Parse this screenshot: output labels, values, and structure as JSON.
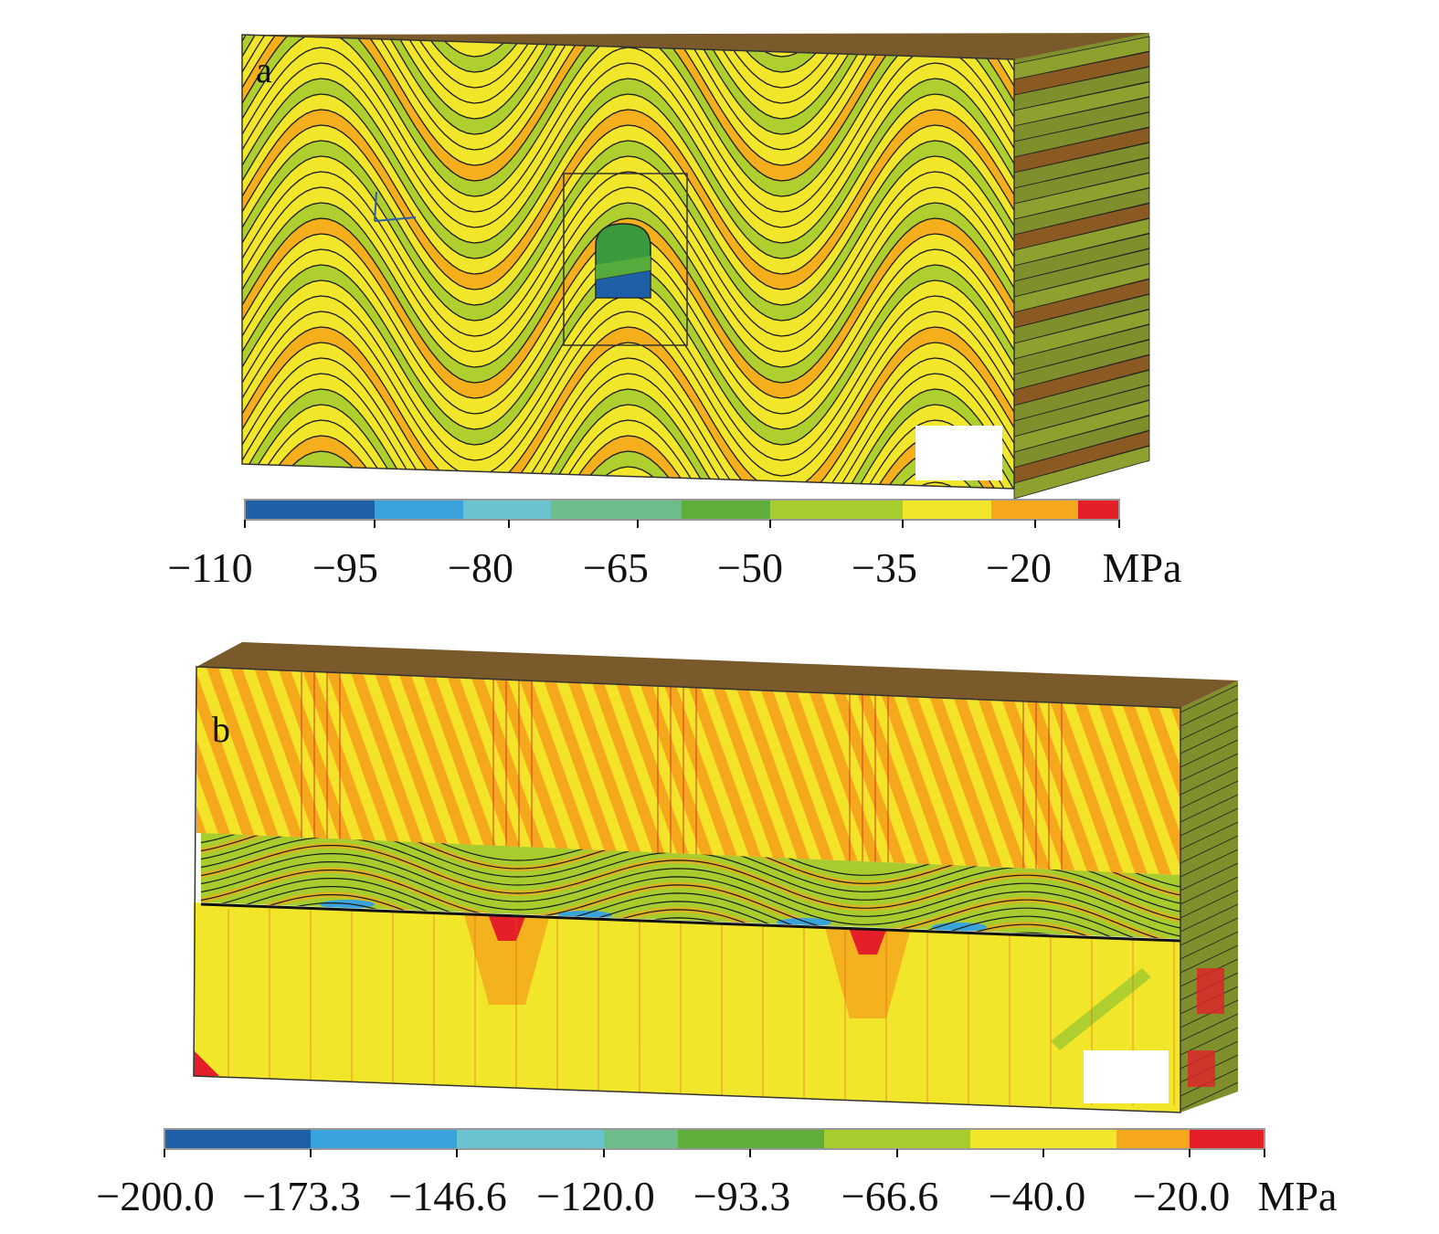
{
  "panels": [
    {
      "letter": "a",
      "unit": "MPa",
      "ticks": [
        "−110",
        "−95",
        "−80",
        "−65",
        "−50",
        "−35",
        "−20"
      ],
      "colorbar": [
        "#1f5fa8",
        "#3aa3dc",
        "#6cc3d0",
        "#6dbd8c",
        "#5fae3c",
        "#a6cc2e",
        "#f2e62a",
        "#f5a81c",
        "#e41f2a"
      ],
      "face_colors": {
        "base": "#f2e62a",
        "band_green": "#a6cc2e",
        "band_orange": "#f5a81c",
        "side": "#7e8f2c",
        "side_dark": "#8a5a22",
        "top": "#7a5a2a"
      }
    },
    {
      "letter": "b",
      "unit": "MPa",
      "ticks": [
        "−200.0",
        "−173.3",
        "−146.6",
        "−120.0",
        "−93.3",
        "−66.6",
        "−40.0",
        "−20.0"
      ],
      "colorbar": [
        "#1f5fa8",
        "#3aa3dc",
        "#6cc3d0",
        "#6dbd8c",
        "#5fae3c",
        "#a6cc2e",
        "#f2e62a",
        "#f5a81c",
        "#e41f2a"
      ],
      "face_colors": {
        "base": "#f2e62a",
        "band_orange": "#f5a81c",
        "band_green": "#a6cc2e",
        "band_red": "#e41f2a",
        "side": "#7e8f2c",
        "top": "#7a5a2a"
      }
    }
  ]
}
